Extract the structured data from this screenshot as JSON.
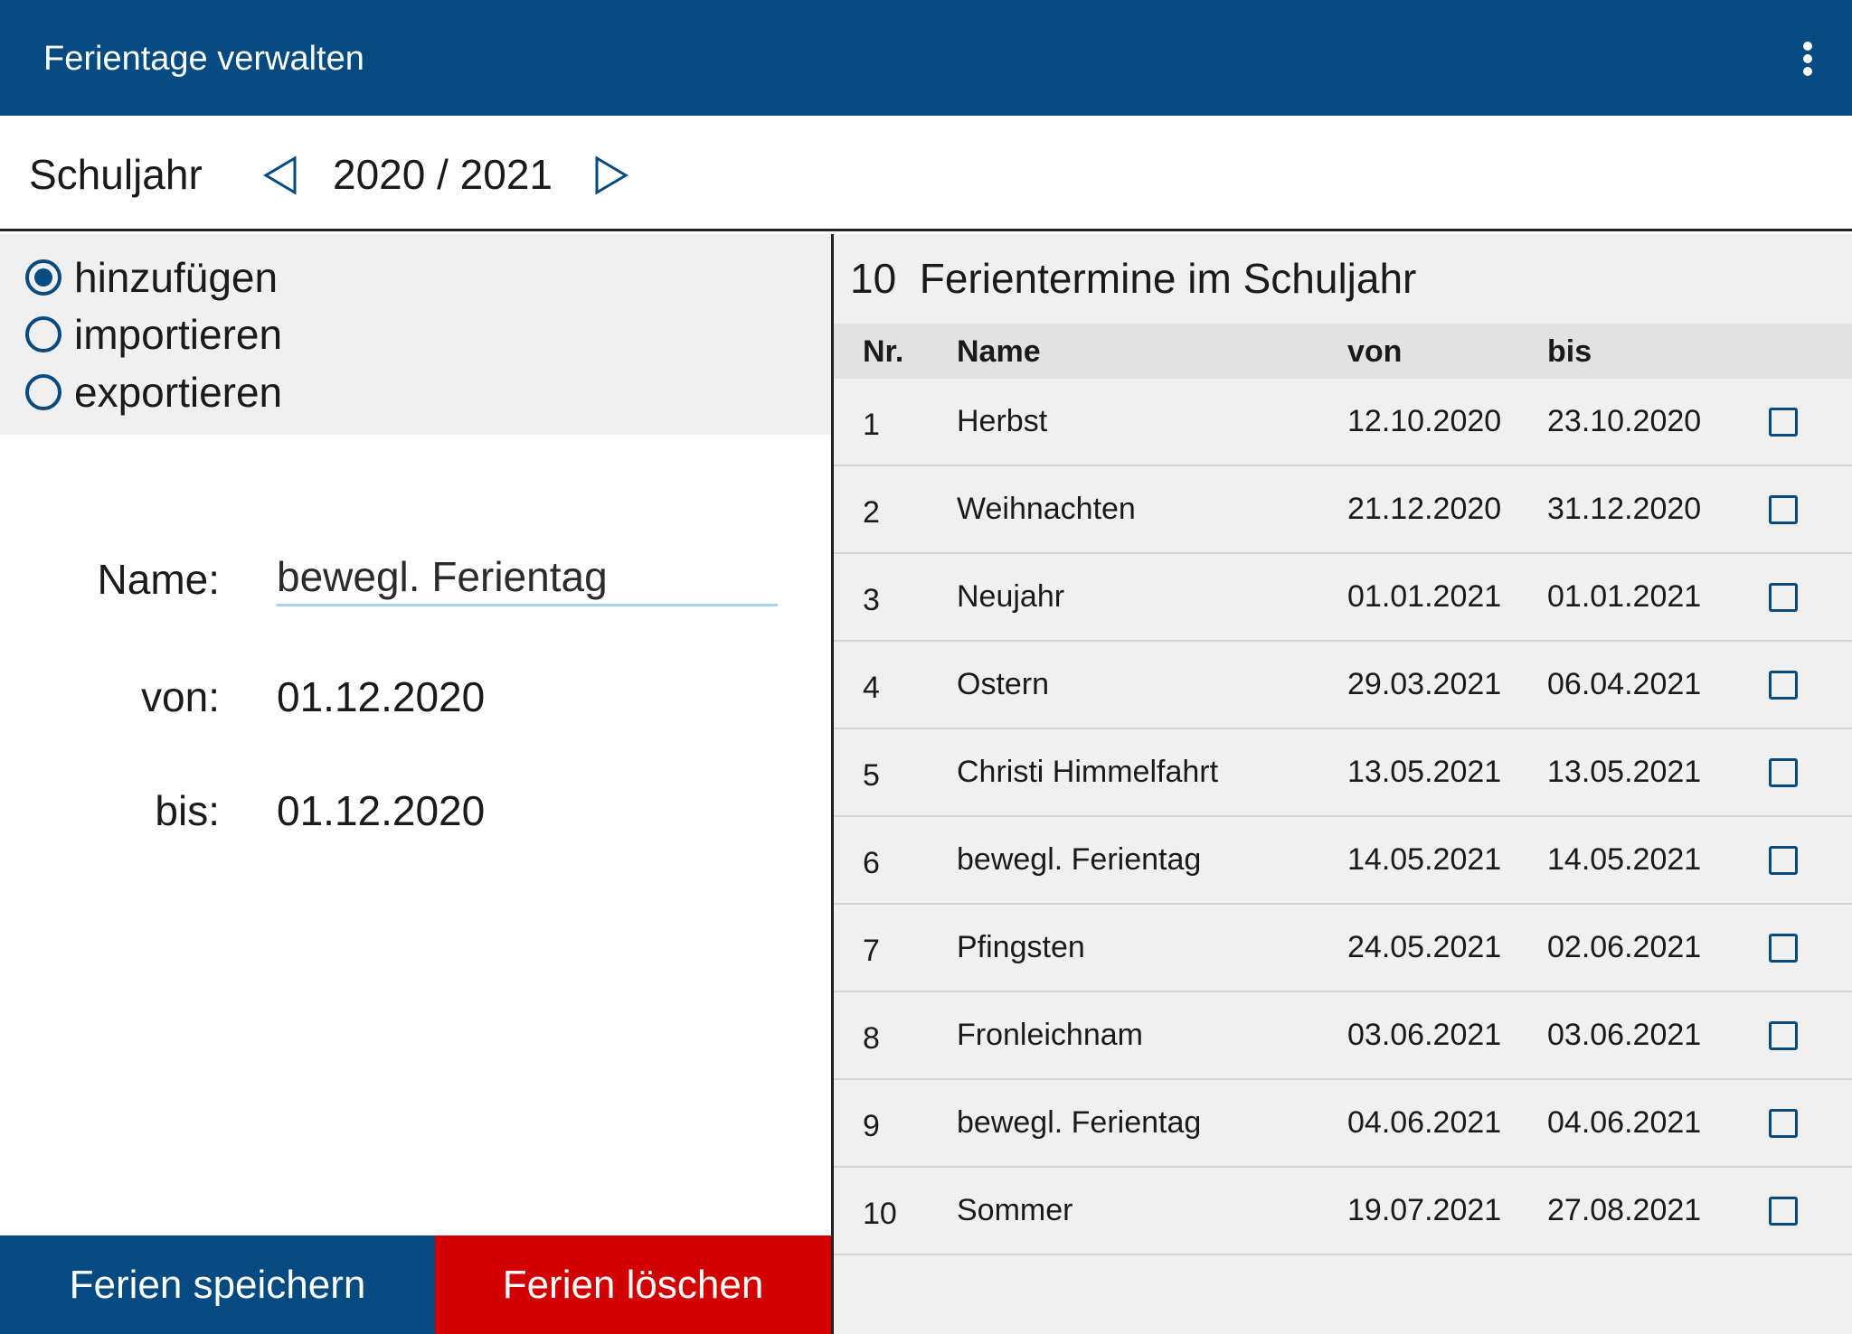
{
  "appbar": {
    "title": "Ferientage verwalten"
  },
  "year_selector": {
    "label": "Schuljahr",
    "value": "2020 / 2021"
  },
  "modes": [
    {
      "label": "hinzufügen",
      "selected": true
    },
    {
      "label": "importieren",
      "selected": false
    },
    {
      "label": "exportieren",
      "selected": false
    }
  ],
  "form": {
    "name_label": "Name:",
    "name_value": "bewegl. Ferientag",
    "von_label": "von:",
    "von_value": "01.12.2020",
    "bis_label": "bis:",
    "bis_value": "01.12.2020"
  },
  "buttons": {
    "save": "Ferien speichern",
    "delete": "Ferien löschen"
  },
  "list": {
    "count": "10",
    "title": "Ferientermine im Schuljahr",
    "headers": {
      "nr": "Nr.",
      "name": "Name",
      "von": "von",
      "bis": "bis"
    },
    "rows": [
      {
        "nr": "1",
        "name": "Herbst",
        "von": "12.10.2020",
        "bis": "23.10.2020"
      },
      {
        "nr": "2",
        "name": "Weihnachten",
        "von": "21.12.2020",
        "bis": "31.12.2020"
      },
      {
        "nr": "3",
        "name": "Neujahr",
        "von": "01.01.2021",
        "bis": "01.01.2021"
      },
      {
        "nr": "4",
        "name": "Ostern",
        "von": "29.03.2021",
        "bis": "06.04.2021"
      },
      {
        "nr": "5",
        "name": "Christi Himmelfahrt",
        "von": "13.05.2021",
        "bis": "13.05.2021"
      },
      {
        "nr": "6",
        "name": "bewegl. Ferientag",
        "von": "14.05.2021",
        "bis": "14.05.2021"
      },
      {
        "nr": "7",
        "name": "Pfingsten",
        "von": "24.05.2021",
        "bis": "02.06.2021"
      },
      {
        "nr": "8",
        "name": "Fronleichnam",
        "von": "03.06.2021",
        "bis": "03.06.2021"
      },
      {
        "nr": "9",
        "name": "bewegl. Ferientag",
        "von": "04.06.2021",
        "bis": "04.06.2021"
      },
      {
        "nr": "10",
        "name": "Sommer",
        "von": "19.07.2021",
        "bis": "27.08.2021"
      }
    ]
  },
  "colors": {
    "primary": "#054a80",
    "danger": "#d20000",
    "panel": "#f0f0f0"
  },
  "icons": {
    "menu": "more-vert-icon",
    "prev": "triangle-left-icon",
    "next": "triangle-right-icon",
    "radio": "radio-icon",
    "checkbox": "checkbox-icon"
  }
}
